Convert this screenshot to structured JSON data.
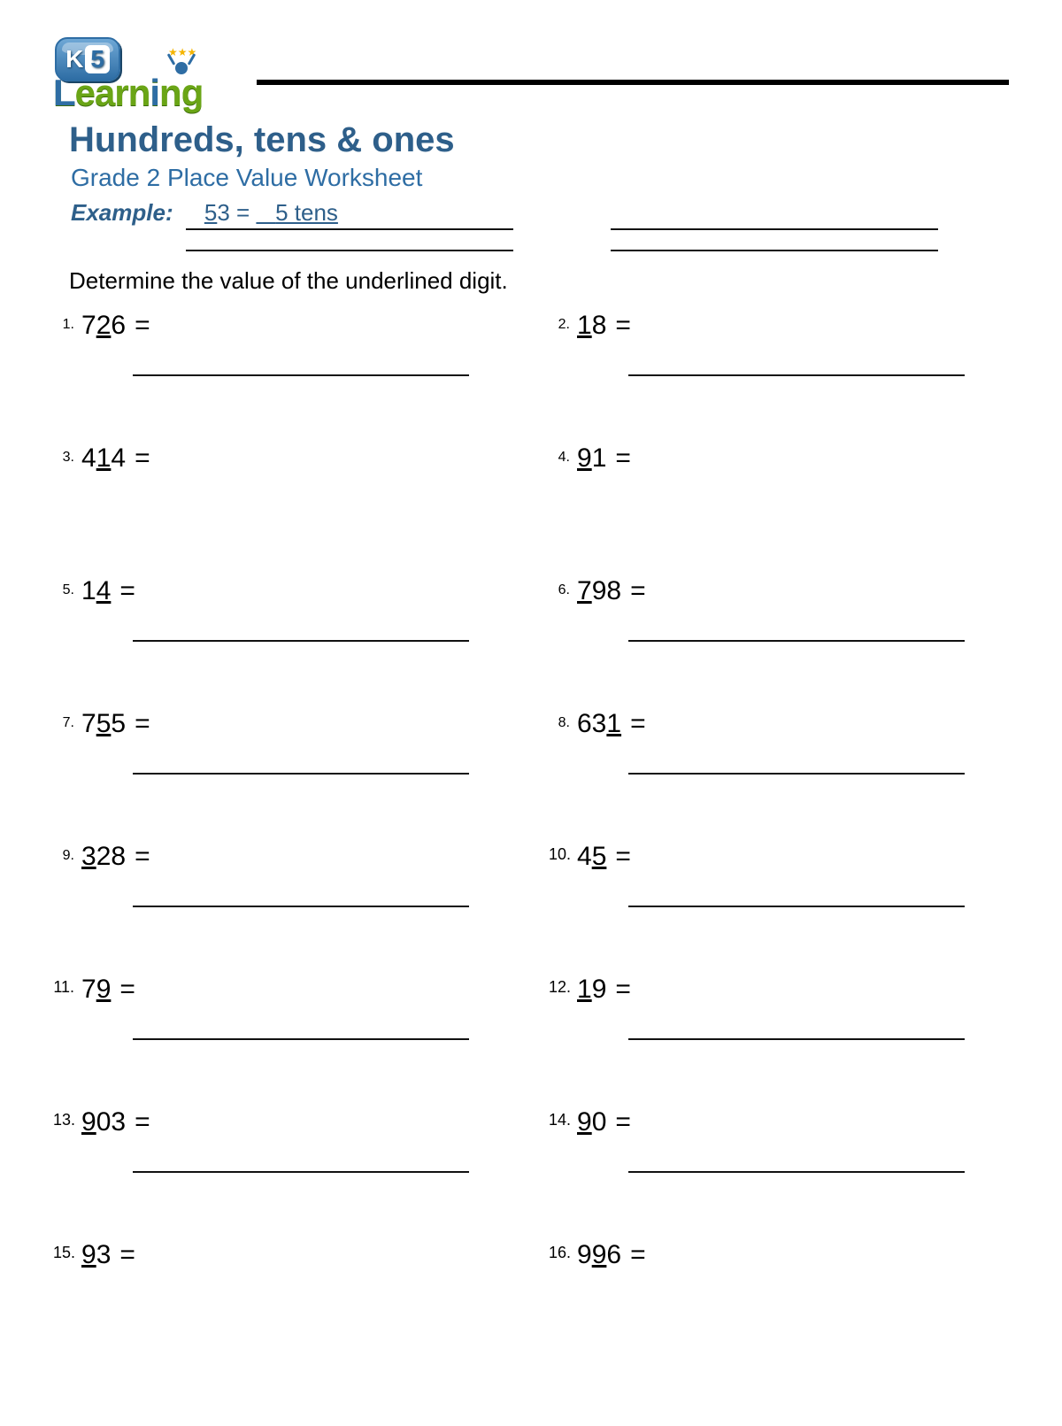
{
  "logo": {
    "badge_text": "K",
    "badge_number": "5",
    "word": "Learning"
  },
  "title": "Hundreds, tens & ones",
  "subtitle": "Grade 2 Place Value Worksheet",
  "example": {
    "label": "Example:",
    "number_before": "",
    "underlined": "5",
    "number_after": "3",
    "equals": " = ",
    "answer_prefix": "   ",
    "answer": "5 tens"
  },
  "instruction": "Determine the value of the underlined digit.",
  "colors": {
    "title": "#2e5f8a",
    "subtitle": "#2e6da4",
    "text": "#000000",
    "rule": "#000000",
    "background": "#ffffff"
  },
  "fonts": {
    "title_size": 40,
    "subtitle_size": 28,
    "body_size": 26,
    "digits_size": 30,
    "label_size": 16
  },
  "problems": [
    {
      "n": "1.",
      "before": "7",
      "ud": "2",
      "after": "6",
      "show_line": true
    },
    {
      "n": "2.",
      "before": "",
      "ud": "1",
      "after": "8",
      "show_line": true
    },
    {
      "n": "3.",
      "before": "4",
      "ud": "1",
      "after": "4",
      "show_line": false
    },
    {
      "n": "4.",
      "before": "",
      "ud": "9",
      "after": "1",
      "show_line": false
    },
    {
      "n": "5.",
      "before": "1",
      "ud": "4",
      "after": "",
      "show_line": true
    },
    {
      "n": "6.",
      "before": "",
      "ud": "7",
      "after": "98",
      "show_line": true
    },
    {
      "n": "7.",
      "before": "7",
      "ud": "5",
      "after": "5",
      "show_line": true
    },
    {
      "n": "8.",
      "before": "63",
      "ud": "1",
      "after": "",
      "show_line": true
    },
    {
      "n": "9.",
      "before": "",
      "ud": "3",
      "after": "28",
      "show_line": true
    },
    {
      "n": "10.",
      "before": "4",
      "ud": "5",
      "after": "",
      "show_line": true
    },
    {
      "n": "11.",
      "before": "7",
      "ud": "9",
      "after": "",
      "show_line": true
    },
    {
      "n": "12.",
      "before": "",
      "ud": "1",
      "after": "9",
      "show_line": true
    },
    {
      "n": "13.",
      "before": "",
      "ud": "9",
      "after": "03",
      "show_line": true
    },
    {
      "n": "14.",
      "before": "",
      "ud": "9",
      "after": "0",
      "show_line": true
    },
    {
      "n": "15.",
      "before": "",
      "ud": "9",
      "after": "3",
      "show_line": false
    },
    {
      "n": "16.",
      "before": "9",
      "ud": "9",
      "after": "6",
      "show_line": false
    }
  ]
}
